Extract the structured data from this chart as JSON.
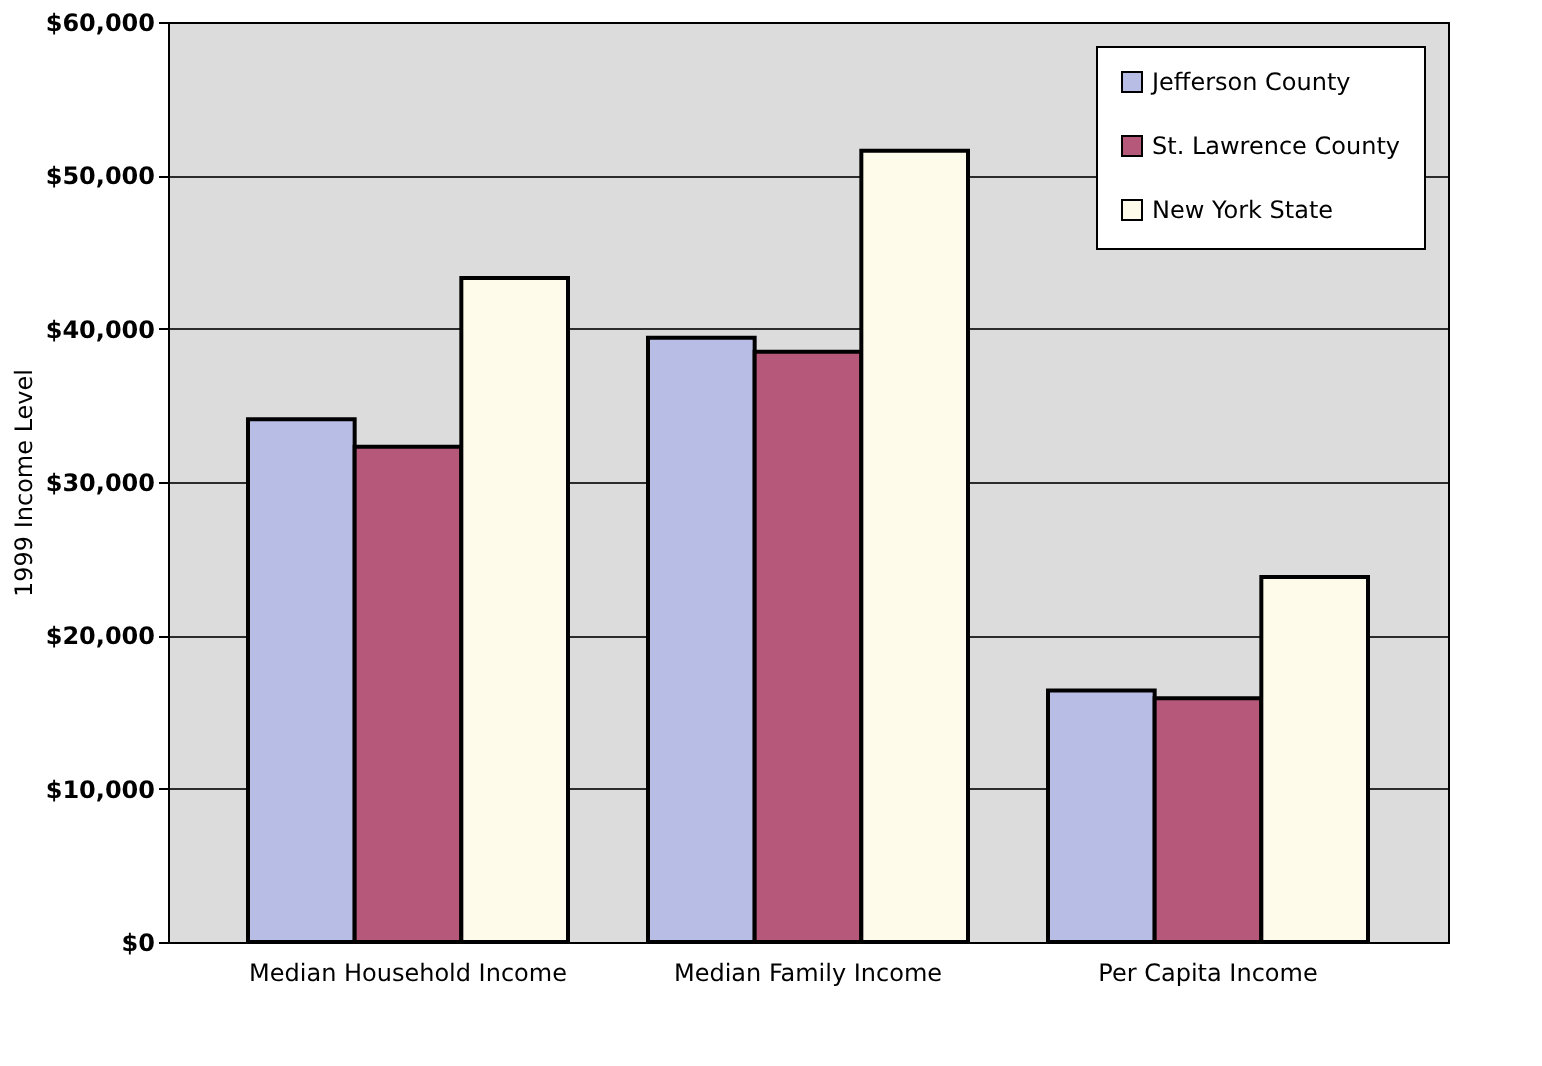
{
  "chart_data": {
    "type": "bar",
    "ylabel": "1999 Income Level",
    "categories": [
      "Median Household Income",
      "Median Family Income",
      "Per Capita Income"
    ],
    "series": [
      {
        "name": "Jefferson County",
        "color": "#b8bde6",
        "values": [
          34100,
          39400,
          16400
        ]
      },
      {
        "name": "St. Lawrence County",
        "color": "#b5587a",
        "values": [
          32300,
          38500,
          15900
        ]
      },
      {
        "name": "New York State",
        "color": "#fffbeb",
        "values": [
          43300,
          51600,
          23800
        ]
      }
    ],
    "ylim": [
      0,
      60000
    ],
    "yticks": [
      {
        "value": 0,
        "label": "$0"
      },
      {
        "value": 10000,
        "label": "$10,000"
      },
      {
        "value": 20000,
        "label": "$20,000"
      },
      {
        "value": 30000,
        "label": "$30,000"
      },
      {
        "value": 40000,
        "label": "$40,000"
      },
      {
        "value": 50000,
        "label": "$50,000"
      },
      {
        "value": 60000,
        "label": "$60,000"
      }
    ],
    "grid": "y",
    "legend": "top right"
  }
}
